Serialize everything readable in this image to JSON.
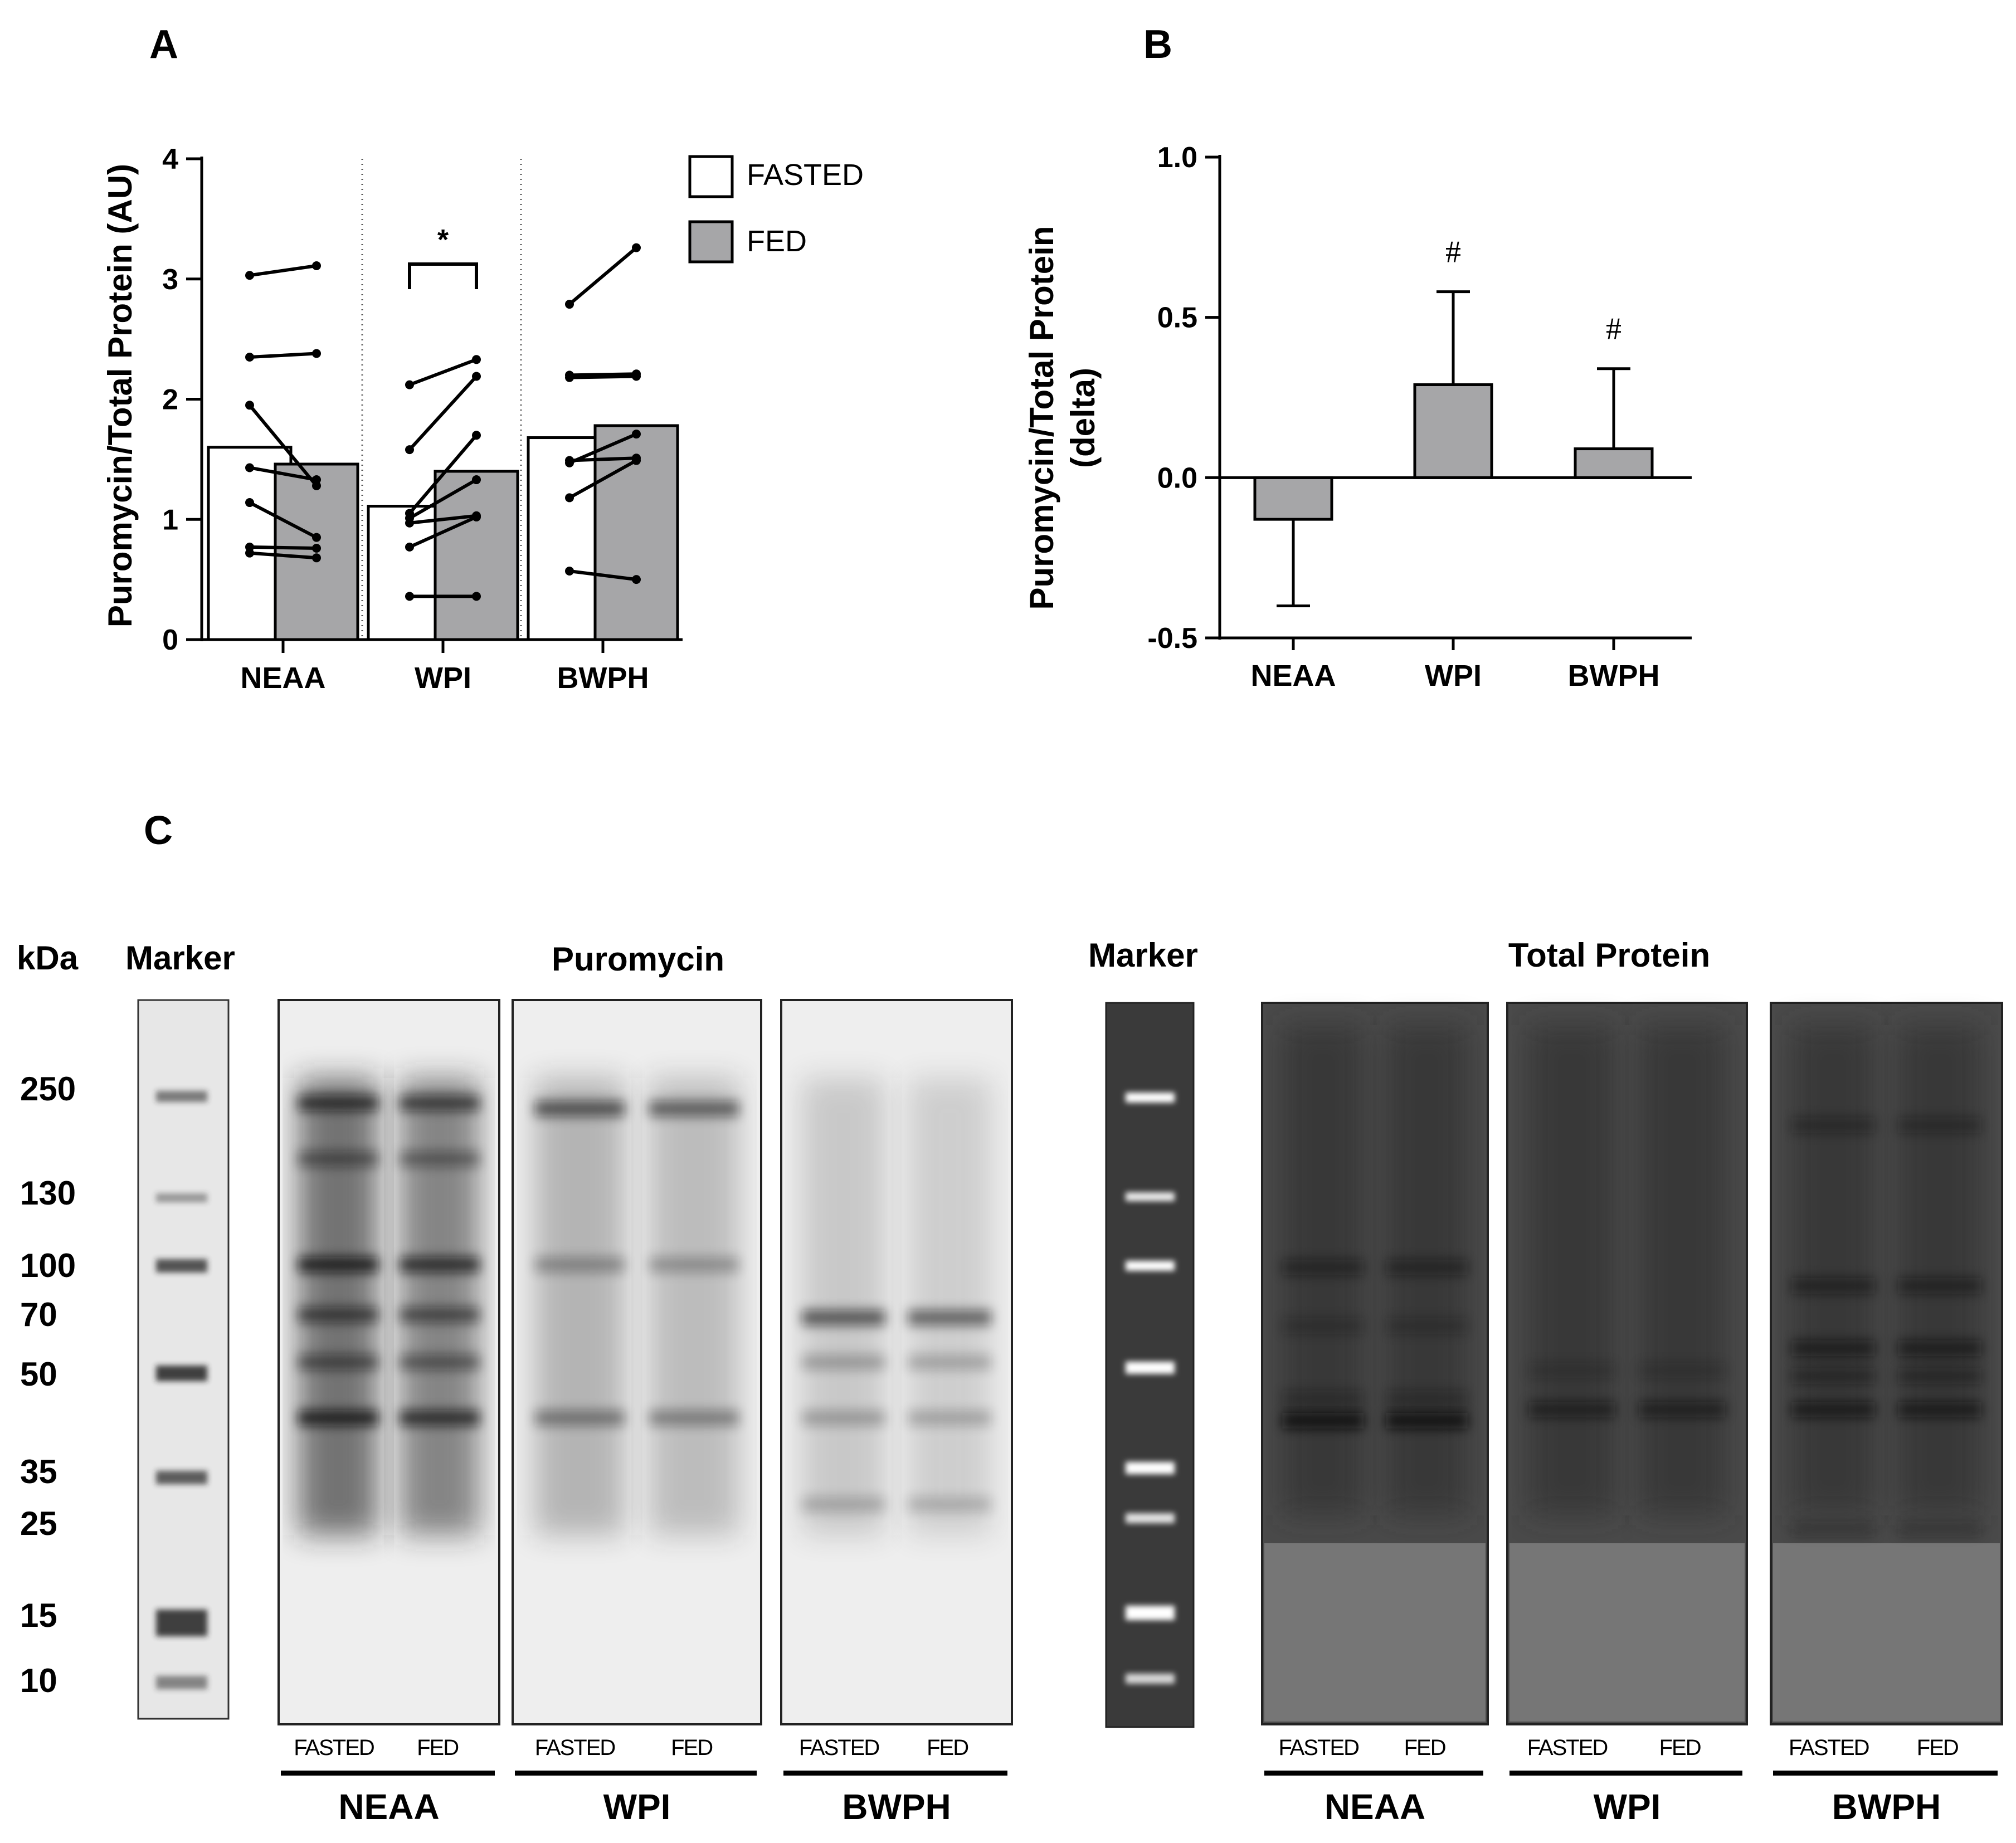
{
  "panels": {
    "a": "A",
    "b": "B",
    "c": "C"
  },
  "chart_data": [
    {
      "type": "bar",
      "panel": "A",
      "ylabel": "Puromycin/Total Protein (AU)",
      "ylim": [
        0,
        4
      ],
      "yticks": [
        0,
        1,
        2,
        3,
        4
      ],
      "categories": [
        "NEAA",
        "WPI",
        "BWPH"
      ],
      "series": [
        {
          "name": "FASTED",
          "values": [
            1.6,
            1.11,
            1.68
          ],
          "color": "#ffffff"
        },
        {
          "name": "FED",
          "values": [
            1.46,
            1.4,
            1.78
          ],
          "color": "#a6a6a8"
        }
      ],
      "paired_individuals": [
        [
          [
            3.03,
            3.11
          ],
          [
            2.35,
            2.38
          ],
          [
            1.95,
            1.28
          ],
          [
            1.43,
            1.33
          ],
          [
            1.14,
            0.85
          ],
          [
            0.77,
            0.76
          ],
          [
            0.72,
            0.68
          ]
        ],
        [
          [
            2.12,
            2.33
          ],
          [
            1.58,
            2.19
          ],
          [
            1.05,
            1.7
          ],
          [
            1.01,
            1.33
          ],
          [
            0.97,
            1.03
          ],
          [
            0.77,
            1.02
          ],
          [
            0.36,
            0.36
          ]
        ],
        [
          [
            2.79,
            3.26
          ],
          [
            2.2,
            2.21
          ],
          [
            2.18,
            2.19
          ],
          [
            1.49,
            1.51
          ],
          [
            1.47,
            1.71
          ],
          [
            1.18,
            1.49
          ],
          [
            0.57,
            0.5
          ]
        ]
      ],
      "significance": [
        {
          "category": "WPI",
          "label": "*"
        }
      ],
      "legend_position": "top-right"
    },
    {
      "type": "bar",
      "panel": "B",
      "ylabel": [
        "Puromycin/Total Protein",
        "(delta)"
      ],
      "ylim": [
        -0.5,
        1.0
      ],
      "yticks": [
        "-0.5",
        "0.0",
        "0.5",
        "1.0"
      ],
      "categories": [
        "NEAA",
        "WPI",
        "BWPH"
      ],
      "values": [
        -0.13,
        0.29,
        0.09
      ],
      "error": [
        0.27,
        0.29,
        0.25
      ],
      "annotations": [
        "",
        "#",
        "#"
      ],
      "color": "#a6a6a8"
    }
  ],
  "blot": {
    "kda_label": "kDa",
    "kda_values": [
      "250",
      "130",
      "100",
      "70",
      "50",
      "35",
      "25",
      "15",
      "10"
    ],
    "marker_label": "Marker",
    "puromycin_title": "Puromycin",
    "total_protein_title": "Total  Protein",
    "lane_labels": [
      "FASTED",
      "FED"
    ],
    "groups": [
      "NEAA",
      "WPI",
      "BWPH"
    ]
  }
}
